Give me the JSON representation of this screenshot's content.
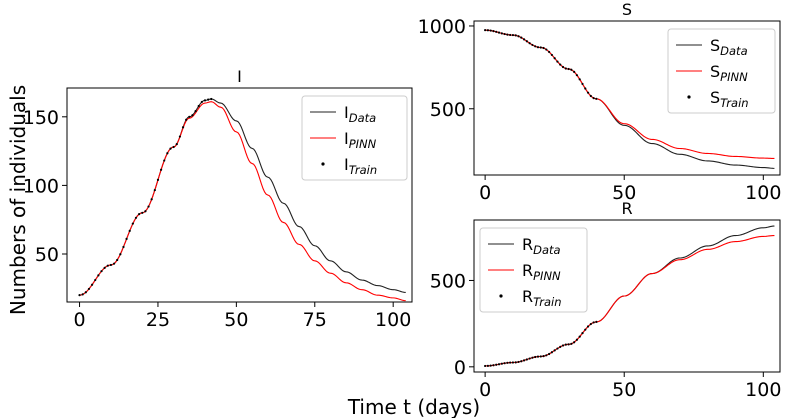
{
  "figure": {
    "ylabel": "Numbers of individuals",
    "xlabel": "Time t (days)"
  },
  "chart_data": [
    {
      "id": "I",
      "type": "line",
      "title": "I",
      "xlim": [
        -4,
        106
      ],
      "ylim": [
        15,
        171
      ],
      "xticks": [
        0,
        25,
        50,
        75,
        100
      ],
      "yticks": [
        50,
        100,
        150
      ],
      "legend_position": "top-right",
      "series": [
        {
          "name": "I",
          "name_sub": "Data",
          "color": "#222222",
          "style": "line",
          "x": [
            0,
            10,
            20,
            30,
            35,
            40,
            42,
            45,
            50,
            55,
            60,
            65,
            70,
            75,
            80,
            85,
            90,
            95,
            100,
            104
          ],
          "y": [
            20,
            42,
            80,
            128,
            150,
            162,
            163,
            160,
            147,
            127,
            106,
            87,
            70,
            56,
            45,
            37,
            31,
            27,
            24,
            22
          ]
        },
        {
          "name": "I",
          "name_sub": "PINN",
          "color": "#ff0000",
          "style": "line",
          "x": [
            0,
            10,
            20,
            30,
            35,
            40,
            42,
            45,
            50,
            55,
            60,
            65,
            70,
            75,
            80,
            85,
            90,
            95,
            100,
            104
          ],
          "y": [
            20,
            42,
            80,
            128,
            149,
            160,
            161,
            157,
            139,
            116,
            93,
            73,
            57,
            45,
            36,
            29,
            24,
            20,
            18,
            16
          ]
        },
        {
          "name": "I",
          "name_sub": "Train",
          "color": "#000000",
          "style": "dots",
          "x_start": 0,
          "x_end": 42,
          "x_step": 1
        }
      ]
    },
    {
      "id": "S",
      "type": "line",
      "title": "S",
      "xlim": [
        -4,
        106
      ],
      "ylim": [
        100,
        1030
      ],
      "xticks": [
        0,
        50,
        100
      ],
      "yticks": [
        500,
        1000
      ],
      "legend_position": "top-right",
      "series": [
        {
          "name": "S",
          "name_sub": "Data",
          "color": "#222222",
          "style": "line",
          "x": [
            0,
            10,
            20,
            30,
            40,
            50,
            60,
            70,
            80,
            90,
            100,
            104
          ],
          "y": [
            975,
            945,
            870,
            740,
            560,
            400,
            290,
            225,
            185,
            160,
            145,
            140
          ]
        },
        {
          "name": "S",
          "name_sub": "PINN",
          "color": "#ff0000",
          "style": "line",
          "x": [
            0,
            10,
            20,
            30,
            40,
            50,
            60,
            70,
            80,
            90,
            100,
            104
          ],
          "y": [
            975,
            945,
            870,
            740,
            560,
            410,
            315,
            260,
            230,
            212,
            202,
            200
          ]
        },
        {
          "name": "S",
          "name_sub": "Train",
          "color": "#000000",
          "style": "dots",
          "x_start": 0,
          "x_end": 40,
          "x_step": 1
        }
      ]
    },
    {
      "id": "R",
      "type": "line",
      "title": "R",
      "xlim": [
        -4,
        106
      ],
      "ylim": [
        -30,
        850
      ],
      "xticks": [
        0,
        50,
        100
      ],
      "yticks": [
        0,
        500
      ],
      "legend_position": "top-left",
      "series": [
        {
          "name": "R",
          "name_sub": "Data",
          "color": "#222222",
          "style": "line",
          "x": [
            0,
            10,
            20,
            30,
            40,
            50,
            60,
            70,
            80,
            90,
            100,
            104
          ],
          "y": [
            5,
            25,
            60,
            130,
            260,
            410,
            540,
            630,
            700,
            760,
            805,
            815
          ]
        },
        {
          "name": "R",
          "name_sub": "PINN",
          "color": "#ff0000",
          "style": "line",
          "x": [
            0,
            10,
            20,
            30,
            40,
            50,
            60,
            70,
            80,
            90,
            100,
            104
          ],
          "y": [
            5,
            25,
            60,
            130,
            260,
            410,
            540,
            620,
            680,
            725,
            755,
            760
          ]
        },
        {
          "name": "R",
          "name_sub": "Train",
          "color": "#000000",
          "style": "dots",
          "x_start": 0,
          "x_end": 40,
          "x_step": 1
        }
      ]
    }
  ]
}
